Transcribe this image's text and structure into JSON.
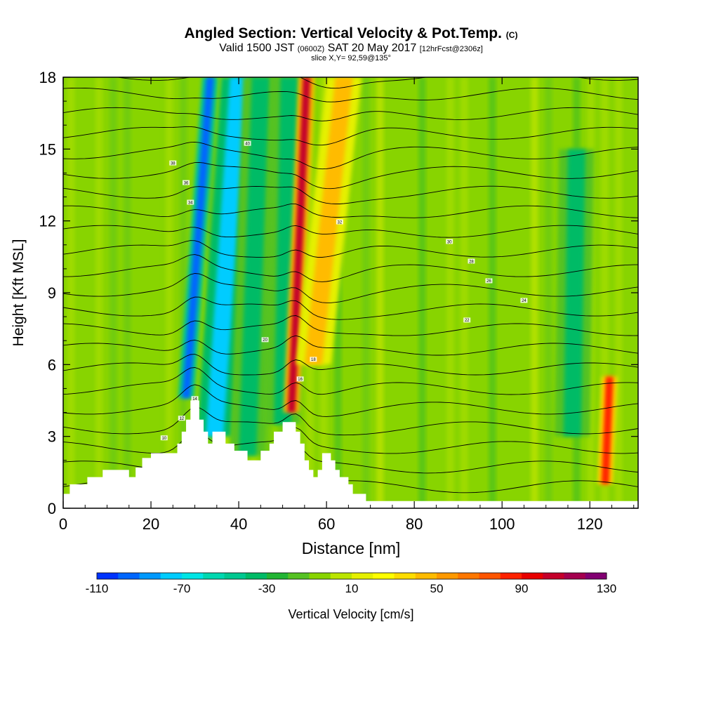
{
  "chart_data": {
    "type": "heatmap",
    "title": "Angled Section: Vertical Velocity & Pot.Temp.",
    "title_suffix": "(C)",
    "subtitle_valid": "Valid 1500 JST",
    "subtitle_zulu": "(0600Z)",
    "subtitle_date": "SAT 20 May 2017",
    "subtitle_fcst": "[12hrFcst@2306z]",
    "slice_label": "slice X,Y= 92,59@135°",
    "xlabel": "Distance [nm]",
    "ylabel": "Height [Kft MSL]",
    "xlim": [
      0,
      131
    ],
    "ylim": [
      0,
      18
    ],
    "x_ticks": [
      "0",
      "20",
      "40",
      "60",
      "80",
      "100",
      "120"
    ],
    "y_ticks": [
      "0",
      "3",
      "6",
      "9",
      "12",
      "15",
      "18"
    ],
    "colorbar": {
      "label": "Vertical Velocity [cm/s]",
      "range": [
        -110,
        130
      ],
      "step": 10,
      "tick_labels": [
        "-110",
        "-70",
        "-30",
        "10",
        "50",
        "90",
        "130"
      ],
      "colors": [
        "#0000ff",
        "#0033ff",
        "#0066ff",
        "#0099ff",
        "#00ccff",
        "#00e5e5",
        "#00d8b0",
        "#00c890",
        "#00bb66",
        "#22b533",
        "#55c222",
        "#88d400",
        "#bbe500",
        "#e5f000",
        "#ffff00",
        "#ffdd00",
        "#ffbb00",
        "#ff9900",
        "#ff7700",
        "#ff5500",
        "#ff2200",
        "#e80000",
        "#c4002a",
        "#a4004e",
        "#820072",
        "#660099"
      ]
    },
    "terrain_profile": {
      "x": [
        0,
        1.5,
        5.5,
        9,
        13,
        15,
        16.5,
        18,
        20,
        22,
        24,
        26,
        27,
        28,
        29,
        30,
        31,
        32,
        33,
        34,
        35,
        36,
        37,
        38,
        39,
        40,
        41,
        42,
        43,
        44,
        45,
        46,
        47,
        48,
        49,
        50,
        51,
        52,
        53,
        54,
        55,
        56,
        57,
        58,
        59,
        60,
        61,
        62,
        63,
        64,
        65,
        66,
        67,
        68,
        69,
        70,
        72,
        131
      ],
      "height": [
        0.6,
        1.0,
        1.3,
        1.6,
        1.6,
        1.3,
        1.7,
        2.1,
        2.3,
        2.3,
        2.3,
        2.7,
        3.2,
        3.7,
        4.5,
        4.5,
        3.7,
        3.2,
        2.7,
        3.2,
        3.2,
        3.2,
        2.7,
        2.7,
        2.4,
        2.4,
        2.4,
        2.0,
        2.0,
        2.0,
        2.4,
        2.4,
        2.7,
        3.2,
        3.2,
        3.6,
        3.6,
        3.6,
        3.2,
        2.7,
        2.0,
        1.6,
        1.3,
        1.6,
        2.3,
        2.3,
        2.0,
        1.6,
        1.3,
        1.3,
        1.0,
        0.6,
        0.6,
        0.6,
        0.3,
        0.3,
        0.3,
        0.3
      ]
    },
    "velocity_features": [
      {
        "x": 28,
        "y_bottom": 4.6,
        "x_top": 33.5,
        "y_top": 18,
        "value": -90
      },
      {
        "x": 34.5,
        "y_bottom": 3.0,
        "x_top": 40,
        "y_top": 18,
        "value": -70
      },
      {
        "x": 42,
        "y_bottom": 2.2,
        "x_top": 45,
        "y_top": 18,
        "value": -30
      },
      {
        "x": 50,
        "y_bottom": 3.5,
        "x_top": 51.5,
        "y_top": 18,
        "value": -30
      },
      {
        "x": 52,
        "y_bottom": 4.0,
        "x_top": 55.5,
        "y_top": 18,
        "value": 110
      },
      {
        "x": 57,
        "y_bottom": 6.0,
        "x_top": 64,
        "y_top": 18,
        "value": 50
      },
      {
        "x": 123.5,
        "y_bottom": 1.0,
        "x_top": 124.5,
        "y_top": 5.5,
        "value": 90
      },
      {
        "x": 116,
        "y_bottom": 3.0,
        "x_top": 117,
        "y_top": 15,
        "value": -30
      }
    ],
    "contour_labels": [
      "10",
      "12",
      "14",
      "16",
      "18",
      "20",
      "22",
      "24",
      "26",
      "28",
      "30",
      "32",
      "34",
      "36",
      "38",
      "40"
    ]
  }
}
